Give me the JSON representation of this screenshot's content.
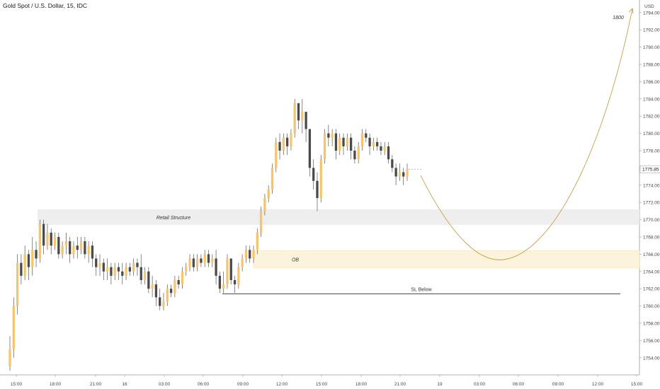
{
  "header": {
    "title": "Gold Spot / U.S. Dollar, 15, IDC"
  },
  "price_axis": {
    "unit": "USD",
    "current_price_label": "1775.85"
  },
  "colors": {
    "up": "#f7c46c",
    "down": "#4a4a4a",
    "wick": "#555555",
    "projection": "#c8a04a",
    "zone_fill": "#eeeeee",
    "ob_fill": "#fcf3dc",
    "axis_text": "#444444"
  },
  "chart_data": {
    "type": "candlestick",
    "title": "Gold Spot / U.S. Dollar, 15, IDC",
    "ylim": [
      1752.5,
      1796.8
    ],
    "y_ticks": [
      "1754.00",
      "1756.00",
      "1758.00",
      "1760.00",
      "1762.00",
      "1764.00",
      "1766.00",
      "1768.00",
      "1770.00",
      "1772.00",
      "1774.00",
      "1776.00",
      "1778.00",
      "1780.00",
      "1782.00",
      "1784.00",
      "1786.00",
      "1788.00",
      "1790.00",
      "1792.00",
      "1794.00"
    ],
    "x_ticks": [
      "15:00",
      "18:00",
      "21:00",
      "16",
      "03:00",
      "06:00",
      "09:00",
      "12:00",
      "15:00",
      "18:00",
      "21:00",
      "19",
      "03:00",
      "06:00",
      "09:00",
      "12:00",
      "15:00"
    ],
    "candles": [
      [
        1753.0,
        1755.0,
        1752.5,
        1756.5
      ],
      [
        1755.0,
        1760.0,
        1754.0,
        1761.0
      ],
      [
        1760.0,
        1765.0,
        1759.0,
        1766.0
      ],
      [
        1765.0,
        1763.5,
        1762.5,
        1766.0
      ],
      [
        1763.5,
        1766.0,
        1763.0,
        1767.0
      ],
      [
        1766.0,
        1764.5,
        1763.0,
        1766.5
      ],
      [
        1764.5,
        1766.5,
        1763.5,
        1768.0
      ],
      [
        1766.5,
        1765.5,
        1764.5,
        1767.5
      ],
      [
        1765.5,
        1769.5,
        1765.0,
        1770.0
      ],
      [
        1769.5,
        1767.0,
        1766.0,
        1770.0
      ],
      [
        1767.0,
        1768.5,
        1766.5,
        1769.5
      ],
      [
        1768.5,
        1767.0,
        1766.0,
        1769.0
      ],
      [
        1767.0,
        1768.0,
        1766.5,
        1768.5
      ],
      [
        1768.0,
        1766.0,
        1765.5,
        1768.5
      ],
      [
        1766.0,
        1767.0,
        1765.5,
        1767.5
      ],
      [
        1767.0,
        1767.5,
        1766.0,
        1768.5
      ],
      [
        1767.5,
        1766.0,
        1765.0,
        1768.0
      ],
      [
        1766.0,
        1767.0,
        1765.5,
        1767.5
      ],
      [
        1767.0,
        1766.5,
        1765.5,
        1768.0
      ],
      [
        1766.5,
        1767.5,
        1766.0,
        1768.0
      ],
      [
        1767.5,
        1766.0,
        1765.5,
        1768.0
      ],
      [
        1766.0,
        1767.0,
        1765.0,
        1767.5
      ],
      [
        1767.0,
        1765.5,
        1764.5,
        1767.5
      ],
      [
        1765.5,
        1764.5,
        1763.5,
        1766.0
      ],
      [
        1764.5,
        1765.0,
        1763.5,
        1766.0
      ],
      [
        1765.0,
        1764.0,
        1763.0,
        1765.5
      ],
      [
        1764.0,
        1764.5,
        1763.0,
        1765.5
      ],
      [
        1764.5,
        1763.5,
        1762.5,
        1765.0
      ],
      [
        1763.5,
        1764.5,
        1763.0,
        1765.0
      ],
      [
        1764.5,
        1764.0,
        1763.0,
        1765.0
      ],
      [
        1764.0,
        1763.5,
        1762.5,
        1765.0
      ],
      [
        1763.5,
        1764.5,
        1763.0,
        1765.0
      ],
      [
        1764.5,
        1764.0,
        1763.5,
        1765.0
      ],
      [
        1764.0,
        1765.0,
        1763.5,
        1765.5
      ],
      [
        1765.0,
        1764.5,
        1763.5,
        1765.5
      ],
      [
        1764.5,
        1763.0,
        1762.5,
        1766.0
      ],
      [
        1763.0,
        1764.0,
        1762.5,
        1764.5
      ],
      [
        1764.0,
        1762.0,
        1761.5,
        1764.5
      ],
      [
        1762.0,
        1762.5,
        1761.0,
        1763.5
      ],
      [
        1762.5,
        1761.0,
        1760.0,
        1763.0
      ],
      [
        1761.0,
        1760.0,
        1759.5,
        1762.0
      ],
      [
        1760.0,
        1760.5,
        1759.5,
        1761.5
      ],
      [
        1760.5,
        1762.0,
        1760.0,
        1762.5
      ],
      [
        1762.0,
        1761.5,
        1761.0,
        1762.5
      ],
      [
        1761.5,
        1763.0,
        1761.0,
        1763.5
      ],
      [
        1763.0,
        1762.5,
        1762.0,
        1763.5
      ],
      [
        1762.5,
        1764.0,
        1762.0,
        1764.5
      ],
      [
        1764.0,
        1764.5,
        1763.5,
        1765.0
      ],
      [
        1764.5,
        1765.5,
        1764.0,
        1766.0
      ],
      [
        1765.5,
        1764.5,
        1764.0,
        1766.0
      ],
      [
        1764.5,
        1765.5,
        1764.0,
        1766.0
      ],
      [
        1765.5,
        1765.0,
        1764.5,
        1766.0
      ],
      [
        1765.0,
        1766.0,
        1764.5,
        1766.5
      ],
      [
        1766.0,
        1765.0,
        1764.5,
        1766.5
      ],
      [
        1765.0,
        1765.5,
        1764.5,
        1766.0
      ],
      [
        1765.5,
        1763.5,
        1762.5,
        1766.5
      ],
      [
        1763.5,
        1762.0,
        1761.5,
        1764.0
      ],
      [
        1762.0,
        1762.5,
        1761.5,
        1764.0
      ],
      [
        1762.5,
        1765.5,
        1762.0,
        1766.0
      ],
      [
        1765.5,
        1763.0,
        1762.5,
        1765.5
      ],
      [
        1763.0,
        1762.5,
        1761.5,
        1763.5
      ],
      [
        1762.5,
        1764.5,
        1762.0,
        1765.0
      ],
      [
        1764.5,
        1765.5,
        1764.0,
        1766.0
      ],
      [
        1765.5,
        1766.5,
        1765.0,
        1767.0
      ],
      [
        1766.5,
        1765.5,
        1765.0,
        1767.0
      ],
      [
        1765.5,
        1766.5,
        1765.0,
        1767.0
      ],
      [
        1766.5,
        1768.5,
        1766.0,
        1769.0
      ],
      [
        1768.5,
        1771.0,
        1768.0,
        1771.5
      ],
      [
        1771.0,
        1772.5,
        1770.5,
        1773.0
      ],
      [
        1772.5,
        1773.5,
        1772.0,
        1774.0
      ],
      [
        1773.5,
        1776.0,
        1773.0,
        1776.5
      ],
      [
        1776.0,
        1779.0,
        1775.5,
        1779.5
      ],
      [
        1779.0,
        1778.0,
        1777.0,
        1780.0
      ],
      [
        1778.0,
        1779.5,
        1777.5,
        1780.0
      ],
      [
        1779.5,
        1778.5,
        1777.5,
        1780.0
      ],
      [
        1778.5,
        1780.0,
        1778.0,
        1780.5
      ],
      [
        1780.0,
        1783.5,
        1779.5,
        1784.0
      ],
      [
        1783.5,
        1781.5,
        1780.5,
        1783.5
      ],
      [
        1781.5,
        1782.5,
        1780.0,
        1784.0
      ],
      [
        1782.5,
        1780.5,
        1779.0,
        1782.5
      ],
      [
        1780.5,
        1776.0,
        1775.0,
        1780.5
      ],
      [
        1776.0,
        1774.5,
        1773.5,
        1777.0
      ],
      [
        1774.5,
        1772.5,
        1771.0,
        1775.5
      ],
      [
        1772.5,
        1777.0,
        1772.0,
        1777.5
      ],
      [
        1777.0,
        1780.0,
        1776.5,
        1780.5
      ],
      [
        1780.0,
        1779.5,
        1778.5,
        1781.0
      ],
      [
        1779.5,
        1780.0,
        1778.5,
        1780.5
      ],
      [
        1780.0,
        1778.0,
        1777.0,
        1780.5
      ],
      [
        1778.0,
        1779.5,
        1777.5,
        1780.0
      ],
      [
        1779.5,
        1778.5,
        1777.5,
        1780.0
      ],
      [
        1778.5,
        1779.5,
        1778.0,
        1780.0
      ],
      [
        1779.5,
        1778.0,
        1777.0,
        1780.0
      ],
      [
        1778.0,
        1777.0,
        1776.5,
        1778.5
      ],
      [
        1777.0,
        1778.5,
        1776.5,
        1779.0
      ],
      [
        1778.5,
        1780.0,
        1778.0,
        1780.5
      ],
      [
        1780.0,
        1779.5,
        1779.0,
        1780.5
      ],
      [
        1779.5,
        1778.5,
        1777.5,
        1780.0
      ],
      [
        1778.5,
        1779.0,
        1778.0,
        1779.5
      ],
      [
        1779.0,
        1778.5,
        1778.0,
        1779.5
      ],
      [
        1778.5,
        1778.0,
        1777.5,
        1779.0
      ],
      [
        1778.0,
        1778.5,
        1777.5,
        1779.0
      ],
      [
        1778.5,
        1777.0,
        1776.5,
        1779.0
      ],
      [
        1777.0,
        1776.0,
        1775.5,
        1777.5
      ],
      [
        1776.0,
        1775.0,
        1774.0,
        1776.5
      ],
      [
        1775.0,
        1775.5,
        1774.5,
        1776.5
      ],
      [
        1775.5,
        1775.0,
        1774.0,
        1776.0
      ],
      [
        1775.0,
        1775.85,
        1774.5,
        1776.5
      ]
    ],
    "annotations": [
      {
        "kind": "zone",
        "label": "Retail Structure",
        "y_top": 1771.2,
        "y_bottom": 1769.4
      },
      {
        "kind": "zone",
        "label": "OB",
        "y_top": 1766.4,
        "y_bottom": 1764.4
      },
      {
        "kind": "line",
        "label": "SL Below",
        "y": 1761.4
      },
      {
        "kind": "projection_target",
        "label": "1800"
      }
    ]
  }
}
